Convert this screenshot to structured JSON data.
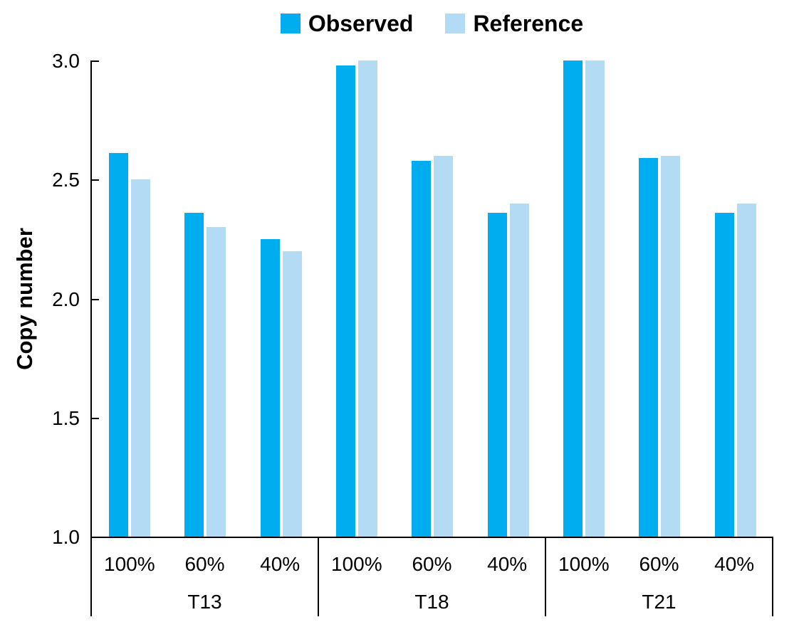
{
  "chart_data": {
    "type": "bar",
    "title": "",
    "ylabel": "Copy number",
    "xlabel": "",
    "ylim": [
      1.0,
      3.0
    ],
    "ytick_labels": [
      "3.0",
      "2.5",
      "2.0",
      "1.5",
      "1.0"
    ],
    "grid": false,
    "legend_position": "top-center",
    "axis_color": "#000000",
    "group_labels": [
      "T13",
      "T18",
      "T21"
    ],
    "categories": [
      "100%",
      "60%",
      "40%"
    ],
    "series": [
      {
        "name": "Observed",
        "color": "#00AEF0",
        "values": [
          [
            2.61,
            2.36,
            2.25
          ],
          [
            2.98,
            2.58,
            2.36
          ],
          [
            3.0,
            2.59,
            2.36
          ]
        ]
      },
      {
        "name": "Reference",
        "color": "#B3DCF4",
        "values": [
          [
            2.5,
            2.3,
            2.2
          ],
          [
            3.0,
            2.6,
            2.4
          ],
          [
            3.0,
            2.6,
            2.4
          ]
        ]
      }
    ]
  },
  "legend": {
    "items": [
      {
        "label": "Observed",
        "color": "#00AEF0"
      },
      {
        "label": "Reference",
        "color": "#B3DCF4"
      }
    ]
  }
}
